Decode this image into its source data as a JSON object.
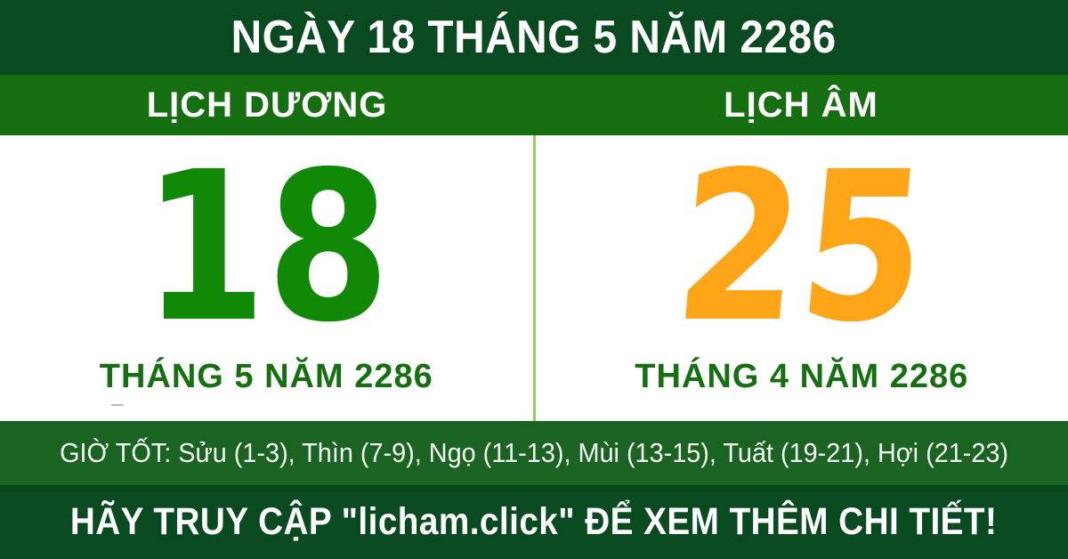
{
  "colors": {
    "dark-green": "#0a4a21",
    "band-green": "#156e10",
    "hours-green": "#1b6322",
    "solar-green": "#108a06",
    "lunar-orange": "#ffa517",
    "month-green": "#166f10",
    "divider-green": "#9ccc65",
    "panel-bg": "#ffffff"
  },
  "header": {
    "title": "NGÀY 18 THÁNG 5 NĂM 2286"
  },
  "calendar": {
    "solar": {
      "label": "LỊCH DƯƠNG",
      "day": "18",
      "month_year": "THÁNG 5 NĂM 2286"
    },
    "lunar": {
      "label": "LỊCH ÂM",
      "day": "25",
      "month_year": "THÁNG 4 NĂM 2286"
    }
  },
  "good_hours": {
    "text": "GIỜ TỐT: Sửu (1-3), Thìn (7-9), Ngọ (11-13), Mùi (13-15), Tuất (19-21), Hợi (21-23)"
  },
  "footer": {
    "text": "HÃY TRUY CẬP \"licham.click\" ĐỂ XEM THÊM CHI TIẾT!"
  }
}
